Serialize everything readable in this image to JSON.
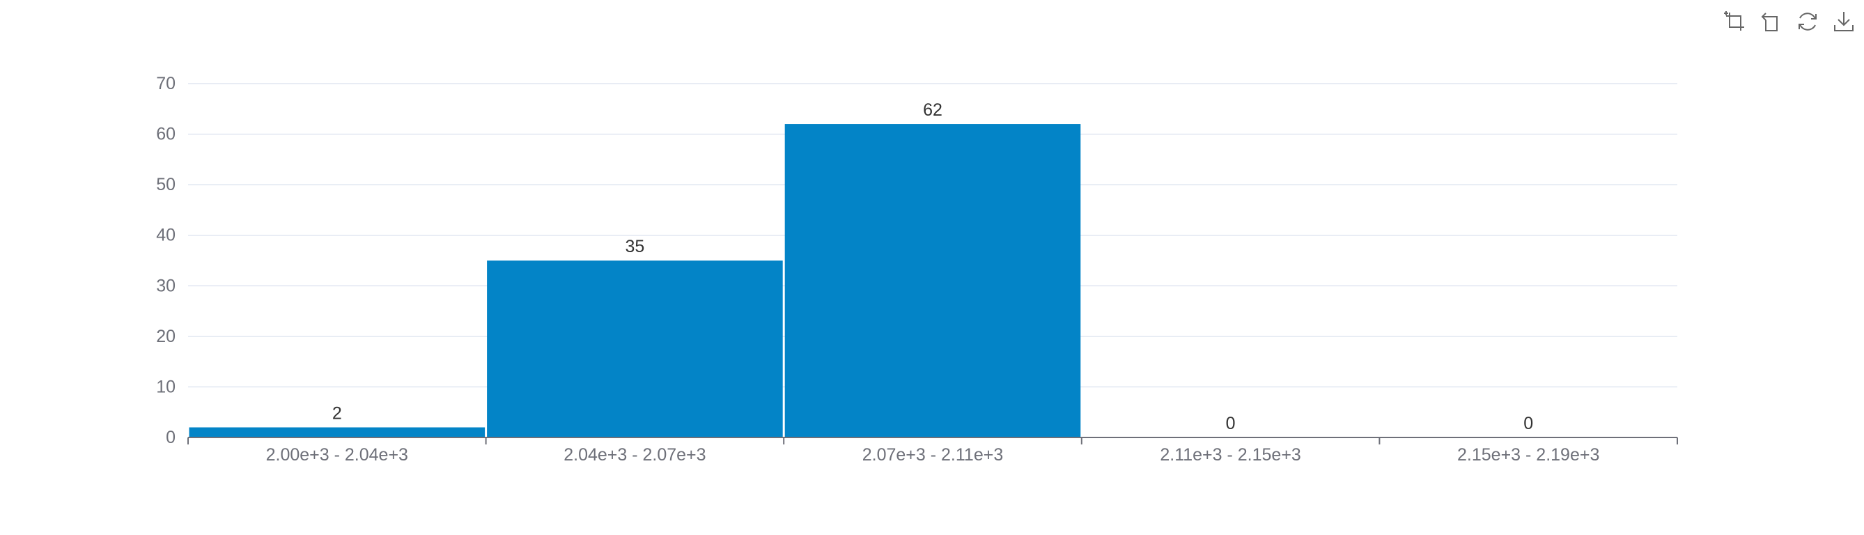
{
  "toolbox": {
    "icons": [
      "zoom-icon",
      "zoom-reset-icon",
      "restore-icon",
      "save-as-image-icon"
    ]
  },
  "colors": {
    "bar": "#0384c7",
    "grid": "#e0e6f1",
    "axis": "#6e7079",
    "label": "#333333",
    "icon": "#666666"
  },
  "chart_data": {
    "type": "bar",
    "title": "",
    "xlabel": "",
    "ylabel": "",
    "categories": [
      "2.00e+3 - 2.04e+3",
      "2.04e+3 - 2.07e+3",
      "2.07e+3 - 2.11e+3",
      "2.11e+3 - 2.15e+3",
      "2.15e+3 - 2.19e+3"
    ],
    "values": [
      2,
      35,
      62,
      0,
      0
    ],
    "data_labels": [
      "2",
      "35",
      "62",
      "0",
      "0"
    ],
    "ylim": [
      0,
      70
    ],
    "yticks": [
      "0",
      "10",
      "20",
      "30",
      "40",
      "50",
      "60",
      "70"
    ],
    "grid": true,
    "legend": "none"
  }
}
